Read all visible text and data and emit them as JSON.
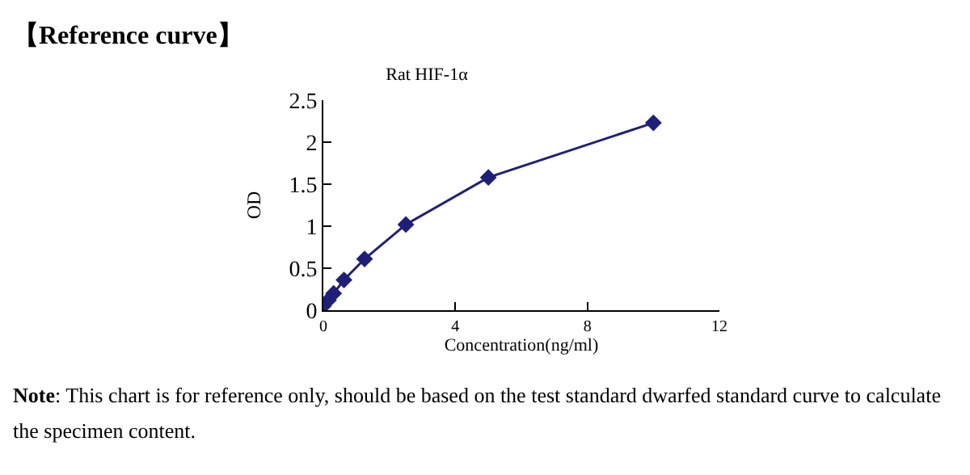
{
  "chart_data": {
    "type": "line",
    "title": "【Reference curve】",
    "subtitle": "Rat HIF-1α",
    "xlabel": "Concentration(ng/ml)",
    "ylabel": "OD",
    "x": [
      0,
      0.156,
      0.312,
      0.625,
      1.25,
      2.5,
      5,
      10
    ],
    "series": [
      {
        "color": "#1f1f7a",
        "values": [
          0.05,
          0.12,
          0.2,
          0.36,
          0.61,
          1.02,
          1.58,
          2.23
        ]
      }
    ],
    "xlim": [
      0,
      12
    ],
    "xticks": [
      0,
      4,
      8,
      12
    ],
    "ylim": [
      0,
      2.5
    ],
    "yticks": [
      0,
      0.5,
      1,
      1.5,
      2,
      2.5
    ],
    "grid": false,
    "marker": "diamond",
    "line_style": "solid",
    "annotations": [
      "Note: This chart is for reference only, should be based on the test standard dwarfed standard curve to calculate the specimen content."
    ]
  }
}
